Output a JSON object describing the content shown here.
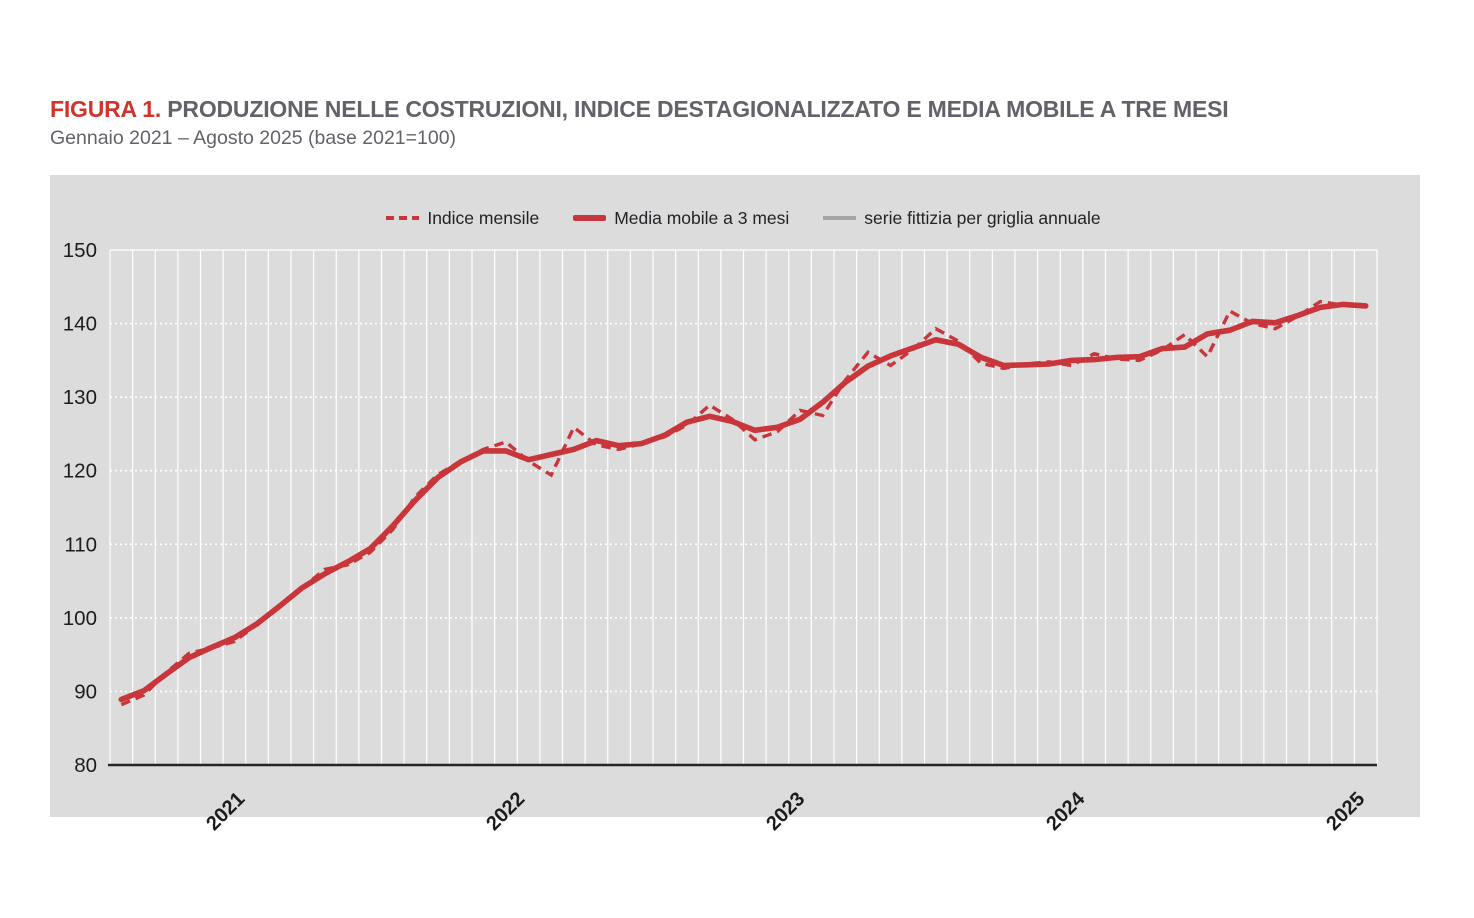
{
  "header": {
    "figure_label": "FIGURA 1.",
    "title": "PRODUZIONE NELLE COSTRUZIONI, INDICE DESTAGIONALIZZATO E MEDIA MOBILE A TRE MESI",
    "subtitle": "Gennaio 2021 – Agosto 2025 (base 2021=100)"
  },
  "legend": {
    "items": [
      {
        "label": "Indice mensile",
        "marker": "dashed-line",
        "color": "#c8363b"
      },
      {
        "label": "Media mobile a 3 mesi",
        "marker": "thick-solid-line",
        "color": "#c8363b"
      },
      {
        "label": "serie fittizia per griglia annuale",
        "marker": "solid-line",
        "color": "#a6a6a6"
      }
    ]
  },
  "chart_data": {
    "type": "line",
    "title": "FIGURA 1. PRODUZIONE NELLE COSTRUZIONI, INDICE DESTAGIONALIZZATO E MEDIA MOBILE A TRE MESI",
    "subtitle": "Gennaio 2021 – Agosto 2025 (base 2021=100)",
    "x_frequency": "monthly",
    "x_start": "2021-01",
    "x_end": "2025-08",
    "n_points": 56,
    "x_tick_labels": [
      "2021",
      "2022",
      "2023",
      "2024",
      "2025"
    ],
    "y_ticks": [
      80,
      90,
      100,
      110,
      120,
      130,
      140,
      150
    ],
    "ylim": [
      80,
      150
    ],
    "grid": {
      "vertical": "solid white line at every month",
      "horizontal": "dotted white line at every 10 units",
      "baseline": "solid dark line at y=80"
    },
    "legend_position": "top-center inside plot",
    "series": [
      {
        "name": "Indice mensile",
        "style": "dashed",
        "color": "#c8363b",
        "values": [
          88.2,
          89.5,
          92.6,
          95.2,
          95.9,
          96.8,
          99.1,
          101.6,
          104.1,
          106.6,
          107.2,
          108.9,
          112.0,
          116.5,
          119.5,
          121.3,
          122.9,
          123.9,
          121.3,
          119.4,
          125.9,
          123.5,
          122.9,
          123.7,
          124.6,
          126.2,
          128.9,
          127.0,
          124.2,
          125.3,
          128.2,
          127.5,
          132.3,
          136.1,
          134.3,
          136.5,
          139.3,
          137.6,
          134.6,
          133.9,
          134.5,
          134.8,
          134.3,
          135.9,
          135.2,
          135.0,
          136.4,
          138.5,
          135.5,
          141.7,
          140.0,
          139.3,
          141.0,
          143.0,
          142.5,
          142.3
        ]
      },
      {
        "name": "Media mobile a 3 mesi",
        "style": "thick-solid",
        "color": "#c8363b",
        "derivation": "centered 3-month moving average of Indice mensile",
        "values": [
          88.9,
          90.1,
          92.4,
          94.6,
          96.0,
          97.3,
          99.2,
          101.6,
          104.1,
          106.0,
          107.6,
          109.4,
          112.5,
          116.0,
          119.1,
          121.2,
          122.7,
          122.7,
          121.5,
          122.2,
          122.9,
          124.1,
          123.4,
          123.7,
          124.8,
          126.6,
          127.4,
          126.7,
          125.5,
          125.9,
          127.0,
          129.3,
          132.0,
          134.2,
          135.6,
          136.7,
          137.8,
          137.2,
          135.4,
          134.3,
          134.4,
          134.5,
          135.0,
          135.1,
          135.4,
          135.5,
          136.6,
          136.8,
          138.6,
          139.1,
          140.3,
          140.1,
          141.1,
          142.2,
          142.6,
          142.4
        ]
      },
      {
        "name": "serie fittizia per griglia annuale",
        "style": "solid",
        "color": "#a6a6a6",
        "role": "dummy series used only to create the annual grid / axis baseline",
        "values": []
      }
    ],
    "colors": {
      "plot_background": "#dcdcdc",
      "page_background": "#ffffff",
      "gridline": "#ffffff",
      "axis_baseline": "#262626",
      "tick_label": "#1c1c1e",
      "title_accent": "#d2342a",
      "title_text": "#626368"
    }
  }
}
